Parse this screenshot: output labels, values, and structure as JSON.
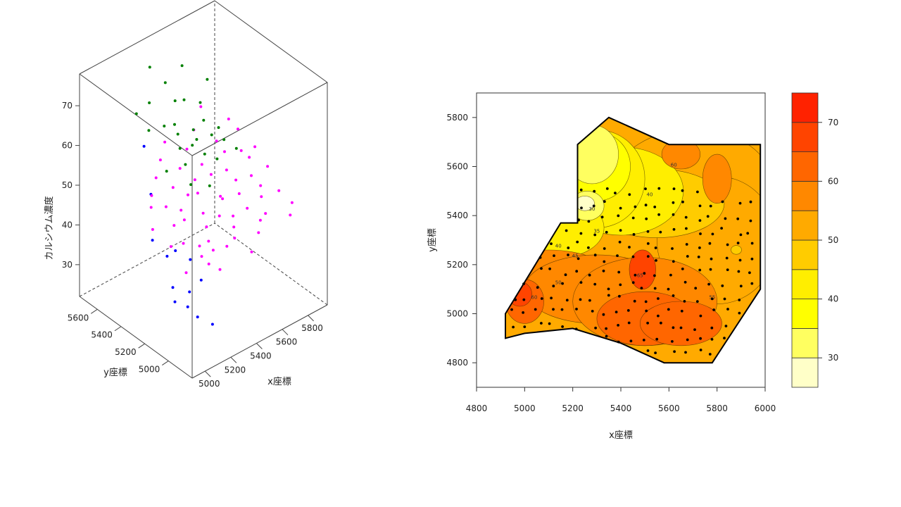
{
  "chart_data": [
    {
      "type": "scatter",
      "dimension": "3d",
      "xlabel": "x座標",
      "ylabel": "y座標",
      "zlabel": "カルシウム濃度",
      "xlim": [
        4900,
        5950
      ],
      "ylim": [
        4800,
        5750
      ],
      "zlim": [
        22,
        78
      ],
      "x_ticks": [
        "5000",
        "5200",
        "5400",
        "5600",
        "5800"
      ],
      "y_ticks": [
        "5000",
        "5200",
        "5400",
        "5600"
      ],
      "z_ticks": [
        "30",
        "40",
        "50",
        "60",
        "70"
      ],
      "colors": {
        "low": "#0000ff",
        "mid": "#ff00ff",
        "high": "#008000"
      },
      "series": [
        {
          "color": "#0000ff",
          "points": [
            [
              4950,
              5000,
              36
            ],
            [
              4980,
              5050,
              38
            ],
            [
              5000,
              5120,
              44
            ],
            [
              4960,
              5200,
              47
            ],
            [
              5050,
              5000,
              33
            ],
            [
              5080,
              4950,
              31
            ],
            [
              5100,
              5040,
              35
            ],
            [
              5120,
              5180,
              42
            ],
            [
              5040,
              5300,
              55
            ],
            [
              5150,
              4900,
              29
            ],
            [
              5180,
              5120,
              40
            ],
            [
              5060,
              5380,
              65
            ],
            [
              5200,
              5050,
              36
            ]
          ]
        },
        {
          "color": "#ff00ff",
          "points": [
            [
              5200,
              5200,
              42
            ],
            [
              5250,
              5100,
              40
            ],
            [
              5300,
              5300,
              44
            ],
            [
              5350,
              5150,
              41
            ],
            [
              5400,
              5250,
              45
            ],
            [
              5450,
              5350,
              47
            ],
            [
              5500,
              5100,
              43
            ],
            [
              5550,
              5250,
              46
            ],
            [
              5600,
              5400,
              48
            ],
            [
              5650,
              5150,
              44
            ],
            [
              5700,
              5300,
              47
            ],
            [
              5750,
              5450,
              50
            ],
            [
              5800,
              5200,
              46
            ],
            [
              5850,
              5350,
              49
            ],
            [
              5900,
              5500,
              52
            ],
            [
              5250,
              5400,
              46
            ],
            [
              5300,
              5000,
              38
            ],
            [
              5350,
              5450,
              48
            ],
            [
              5400,
              5050,
              41
            ],
            [
              5450,
              5500,
              50
            ],
            [
              5500,
              4950,
              40
            ],
            [
              5550,
              5550,
              52
            ],
            [
              5600,
              5000,
              42
            ],
            [
              5650,
              5600,
              54
            ],
            [
              5700,
              5050,
              44
            ],
            [
              5750,
              5650,
              57
            ],
            [
              5800,
              4950,
              44
            ],
            [
              5850,
              5100,
              46
            ],
            [
              5900,
              5250,
              48
            ],
            [
              5220,
              5300,
              44
            ],
            [
              5280,
              5150,
              41
            ],
            [
              5320,
              5350,
              45
            ],
            [
              5380,
              5200,
              43
            ],
            [
              5420,
              5400,
              46
            ],
            [
              5480,
              5200,
              44
            ],
            [
              5520,
              5450,
              47
            ],
            [
              5580,
              5300,
              45
            ],
            [
              5620,
              5500,
              48
            ],
            [
              5680,
              5250,
              45
            ],
            [
              5720,
              5400,
              47
            ],
            [
              5780,
              5550,
              50
            ],
            [
              5820,
              5300,
              46
            ],
            [
              5880,
              5450,
              48
            ],
            [
              5920,
              5600,
              52
            ],
            [
              5260,
              5050,
              39
            ],
            [
              5340,
              5100,
              40
            ],
            [
              5460,
              5050,
              42
            ],
            [
              5540,
              5150,
              44
            ],
            [
              5660,
              5050,
              43
            ],
            [
              5760,
              5150,
              45
            ],
            [
              5860,
              5000,
              45
            ],
            [
              5940,
              5400,
              49
            ],
            [
              5230,
              5500,
              47
            ],
            [
              5310,
              5550,
              49
            ],
            [
              5390,
              5600,
              51
            ],
            [
              5470,
              5650,
              53
            ],
            [
              5150,
              5250,
              41
            ],
            [
              5100,
              5350,
              44
            ],
            [
              5180,
              5450,
              46
            ],
            [
              5130,
              5100,
              38
            ]
          ]
        },
        {
          "color": "#008000",
          "points": [
            [
              5300,
              5600,
              60
            ],
            [
              5350,
              5650,
              65
            ],
            [
              5400,
              5700,
              72
            ],
            [
              5450,
              5500,
              55
            ],
            [
              5500,
              5600,
              58
            ],
            [
              5550,
              5650,
              62
            ],
            [
              5600,
              5550,
              56
            ],
            [
              5650,
              5700,
              68
            ],
            [
              5700,
              5600,
              60
            ],
            [
              5750,
              5500,
              55
            ],
            [
              5800,
              5650,
              63
            ],
            [
              5400,
              5400,
              54
            ],
            [
              5500,
              5450,
              56
            ],
            [
              5600,
              5350,
              53
            ],
            [
              5700,
              5400,
              55
            ],
            [
              5350,
              5300,
              52
            ],
            [
              5450,
              5250,
              51
            ],
            [
              5550,
              5400,
              54
            ],
            [
              5650,
              5450,
              56
            ],
            [
              5750,
              5350,
              53
            ],
            [
              5300,
              5450,
              53
            ],
            [
              5480,
              5550,
              57
            ],
            [
              5580,
              5500,
              55
            ],
            [
              5680,
              5550,
              57
            ],
            [
              5420,
              5600,
              59
            ],
            [
              5520,
              5700,
              66
            ],
            [
              5620,
              5650,
              61
            ],
            [
              5250,
              5650,
              64
            ]
          ]
        }
      ]
    },
    {
      "type": "heatmap",
      "subtype": "filled-contour",
      "xlabel": "x座標",
      "ylabel": "y座標",
      "xlim": [
        4800,
        6000
      ],
      "ylim": [
        4700,
        5900
      ],
      "x_ticks": [
        "4800",
        "5000",
        "5200",
        "5400",
        "5600",
        "5800",
        "6000"
      ],
      "y_ticks": [
        "4800",
        "5000",
        "5200",
        "5400",
        "5600",
        "5800"
      ],
      "legend": {
        "placement": "right",
        "range": [
          25,
          75
        ],
        "ticks": [
          "30",
          "40",
          "50",
          "60",
          "70"
        ],
        "bands": [
          {
            "from": 25,
            "to": 30,
            "color": "#ffffc8"
          },
          {
            "from": 30,
            "to": 35,
            "color": "#ffff60"
          },
          {
            "from": 35,
            "to": 40,
            "color": "#ffff00"
          },
          {
            "from": 40,
            "to": 45,
            "color": "#ffee00"
          },
          {
            "from": 45,
            "to": 50,
            "color": "#ffcc00"
          },
          {
            "from": 50,
            "to": 55,
            "color": "#ffaa00"
          },
          {
            "from": 55,
            "to": 60,
            "color": "#ff8800"
          },
          {
            "from": 60,
            "to": 65,
            "color": "#ff6600"
          },
          {
            "from": 65,
            "to": 70,
            "color": "#ff4400"
          },
          {
            "from": 70,
            "to": 75,
            "color": "#ff2200"
          }
        ]
      },
      "region_boundary": [
        [
          4920,
          4900
        ],
        [
          4920,
          5000
        ],
        [
          5150,
          5370
        ],
        [
          5220,
          5370
        ],
        [
          5220,
          5690
        ],
        [
          5350,
          5800
        ],
        [
          5600,
          5690
        ],
        [
          5980,
          5690
        ],
        [
          5980,
          5100
        ],
        [
          5780,
          4800
        ],
        [
          5580,
          4800
        ],
        [
          5400,
          4880
        ],
        [
          5200,
          4940
        ],
        [
          5000,
          4920
        ]
      ],
      "contour_levels": [
        "30",
        "35",
        "40",
        "45",
        "50",
        "55",
        "60",
        "65"
      ],
      "sample_points_count": 190
    }
  ]
}
